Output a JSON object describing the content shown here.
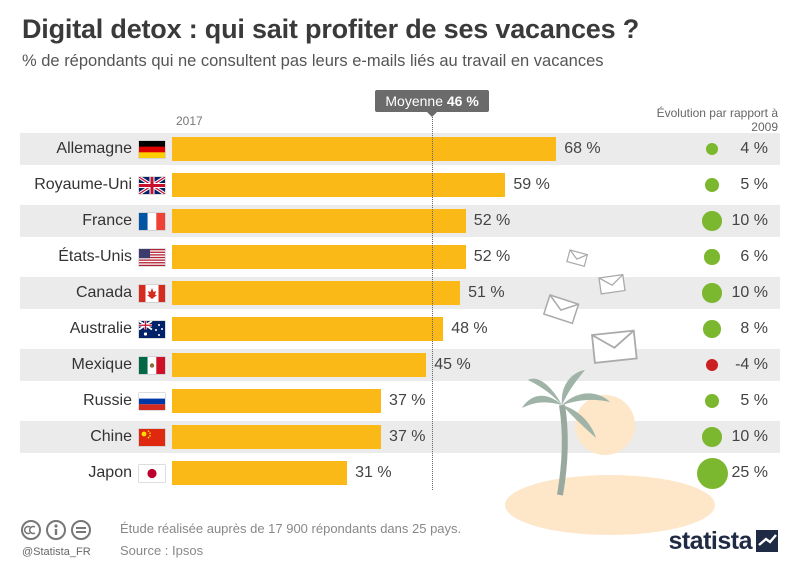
{
  "chart_data": {
    "type": "bar",
    "orientation": "horizontal",
    "title": "Digital detox : qui sait profiter de ses vacances ?",
    "subtitle": "% de répondants qui ne consultent pas leurs e-mails liés au travail en vacances",
    "year_label": "2017",
    "average": {
      "label": "Moyenne",
      "value_text": "46 %",
      "value": 46
    },
    "evolution_header": "Évolution par rapport à 2009",
    "xlim": [
      0,
      100
    ],
    "categories": [
      "Allemagne",
      "Royaume-Uni",
      "France",
      "États-Unis",
      "Canada",
      "Australie",
      "Mexique",
      "Russie",
      "Chine",
      "Japon"
    ],
    "flags": [
      "germany-flag-icon",
      "uk-flag-icon",
      "france-flag-icon",
      "usa-flag-icon",
      "canada-flag-icon",
      "australia-flag-icon",
      "mexico-flag-icon",
      "russia-flag-icon",
      "china-flag-icon",
      "japan-flag-icon"
    ],
    "values": [
      68,
      59,
      52,
      52,
      51,
      48,
      45,
      37,
      37,
      31
    ],
    "value_labels": [
      "68 %",
      "59 %",
      "52 %",
      "52 %",
      "51 %",
      "48 %",
      "45 %",
      "37 %",
      "37 %",
      "31 %"
    ],
    "evolution": [
      4,
      5,
      10,
      6,
      10,
      8,
      -4,
      5,
      10,
      25
    ],
    "evolution_labels": [
      "4 %",
      "5 %",
      "10 %",
      "6 %",
      "10 %",
      "8 %",
      "-4 %",
      "5 %",
      "10 %",
      "25 %"
    ],
    "colors": {
      "bar": "#fbb917",
      "positive": "#7cb82f",
      "negative": "#cc1f1f",
      "row_stripe": "#ebebeb"
    }
  },
  "footer": {
    "note": "Étude réalisée auprès de 17 900 répondants dans 25 pays.",
    "source": "Source : Ipsos",
    "handle": "@Statista_FR",
    "logo": "statista",
    "license_icons": [
      "cc-icon",
      "by-icon",
      "nd-icon"
    ]
  }
}
